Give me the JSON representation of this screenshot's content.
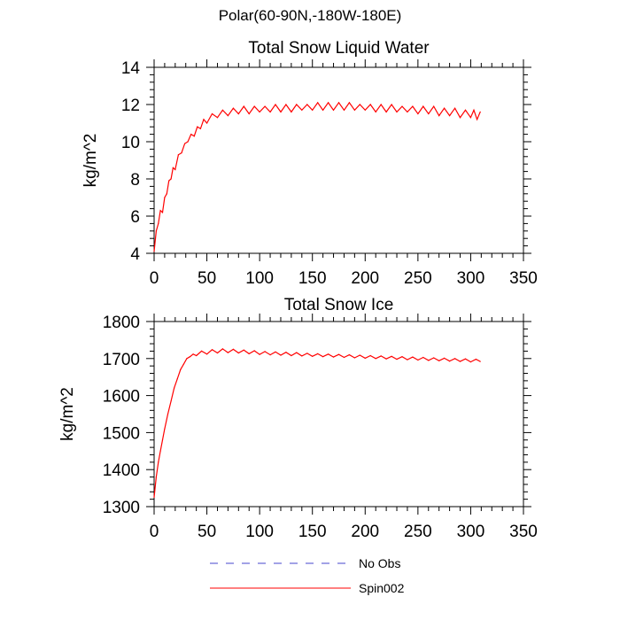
{
  "figure": {
    "title": "Polar(60-90N,-180W-180E)"
  },
  "colors": {
    "spin002": "#ff0000",
    "no_obs": "#4444cc",
    "axis": "#000000"
  },
  "legend": [
    {
      "label": "No Obs",
      "style": "dashed",
      "color": "#4444cc"
    },
    {
      "label": "Spin002",
      "style": "solid",
      "color": "#ff0000"
    }
  ],
  "chart_data": [
    {
      "type": "line",
      "title": "Total Snow Liquid Water",
      "xlabel": "",
      "ylabel": "kg/m^2",
      "xlim": [
        0,
        350
      ],
      "ylim": [
        4,
        14
      ],
      "xticks": [
        0,
        50,
        100,
        150,
        200,
        250,
        300,
        350
      ],
      "yticks": [
        4,
        6,
        8,
        10,
        12,
        14
      ],
      "grid": false,
      "series": [
        {
          "name": "Spin002",
          "color": "#ff0000",
          "x": [
            0,
            2,
            4,
            6,
            8,
            10,
            12,
            14,
            16,
            18,
            20,
            23,
            26,
            29,
            32,
            35,
            38,
            41,
            44,
            47,
            50,
            55,
            60,
            65,
            70,
            75,
            80,
            85,
            90,
            95,
            100,
            105,
            110,
            115,
            120,
            125,
            130,
            135,
            140,
            145,
            150,
            155,
            160,
            165,
            170,
            175,
            180,
            185,
            190,
            195,
            200,
            205,
            210,
            215,
            220,
            225,
            230,
            235,
            240,
            245,
            250,
            255,
            260,
            265,
            270,
            275,
            280,
            285,
            290,
            295,
            300,
            303,
            306,
            309
          ],
          "y": [
            4.1,
            5.2,
            5.6,
            6.3,
            6.2,
            7.0,
            7.2,
            7.9,
            8.0,
            8.6,
            8.5,
            9.3,
            9.4,
            9.9,
            10.0,
            10.4,
            10.3,
            10.8,
            10.7,
            11.2,
            11.0,
            11.5,
            11.3,
            11.7,
            11.4,
            11.8,
            11.5,
            11.9,
            11.5,
            11.9,
            11.6,
            11.9,
            11.6,
            12.0,
            11.6,
            12.0,
            11.6,
            12.0,
            11.7,
            12.0,
            11.7,
            12.1,
            11.7,
            12.1,
            11.7,
            12.1,
            11.7,
            12.1,
            11.7,
            12.0,
            11.7,
            12.0,
            11.6,
            12.0,
            11.6,
            12.0,
            11.6,
            11.9,
            11.6,
            11.9,
            11.5,
            11.9,
            11.5,
            11.9,
            11.4,
            11.8,
            11.4,
            11.8,
            11.3,
            11.7,
            11.3,
            11.7,
            11.2,
            11.6
          ]
        }
      ]
    },
    {
      "type": "line",
      "title": "Total Snow Ice",
      "xlabel": "",
      "ylabel": "kg/m^2",
      "xlim": [
        0,
        350
      ],
      "ylim": [
        1300,
        1800
      ],
      "xticks": [
        0,
        50,
        100,
        150,
        200,
        250,
        300,
        350
      ],
      "yticks": [
        1300,
        1400,
        1500,
        1600,
        1700,
        1800
      ],
      "grid": false,
      "series": [
        {
          "name": "Spin002",
          "color": "#ff0000",
          "x": [
            0,
            2,
            4,
            6,
            8,
            10,
            13,
            16,
            19,
            22,
            25,
            28,
            31,
            34,
            37,
            40,
            45,
            50,
            55,
            60,
            65,
            70,
            75,
            80,
            85,
            90,
            95,
            100,
            105,
            110,
            115,
            120,
            125,
            130,
            135,
            140,
            145,
            150,
            155,
            160,
            165,
            170,
            175,
            180,
            185,
            190,
            195,
            200,
            205,
            210,
            215,
            220,
            225,
            230,
            235,
            240,
            245,
            250,
            255,
            260,
            265,
            270,
            275,
            280,
            285,
            290,
            295,
            300,
            305,
            309
          ],
          "y": [
            1325,
            1380,
            1420,
            1450,
            1480,
            1510,
            1550,
            1585,
            1620,
            1645,
            1670,
            1685,
            1700,
            1705,
            1712,
            1708,
            1720,
            1712,
            1724,
            1715,
            1726,
            1716,
            1725,
            1715,
            1723,
            1713,
            1721,
            1711,
            1719,
            1710,
            1718,
            1709,
            1717,
            1708,
            1716,
            1707,
            1714,
            1706,
            1713,
            1705,
            1712,
            1704,
            1711,
            1703,
            1710,
            1702,
            1709,
            1701,
            1708,
            1700,
            1707,
            1699,
            1706,
            1698,
            1705,
            1697,
            1704,
            1696,
            1703,
            1695,
            1702,
            1694,
            1701,
            1693,
            1700,
            1692,
            1699,
            1691,
            1698,
            1692
          ]
        }
      ]
    }
  ]
}
